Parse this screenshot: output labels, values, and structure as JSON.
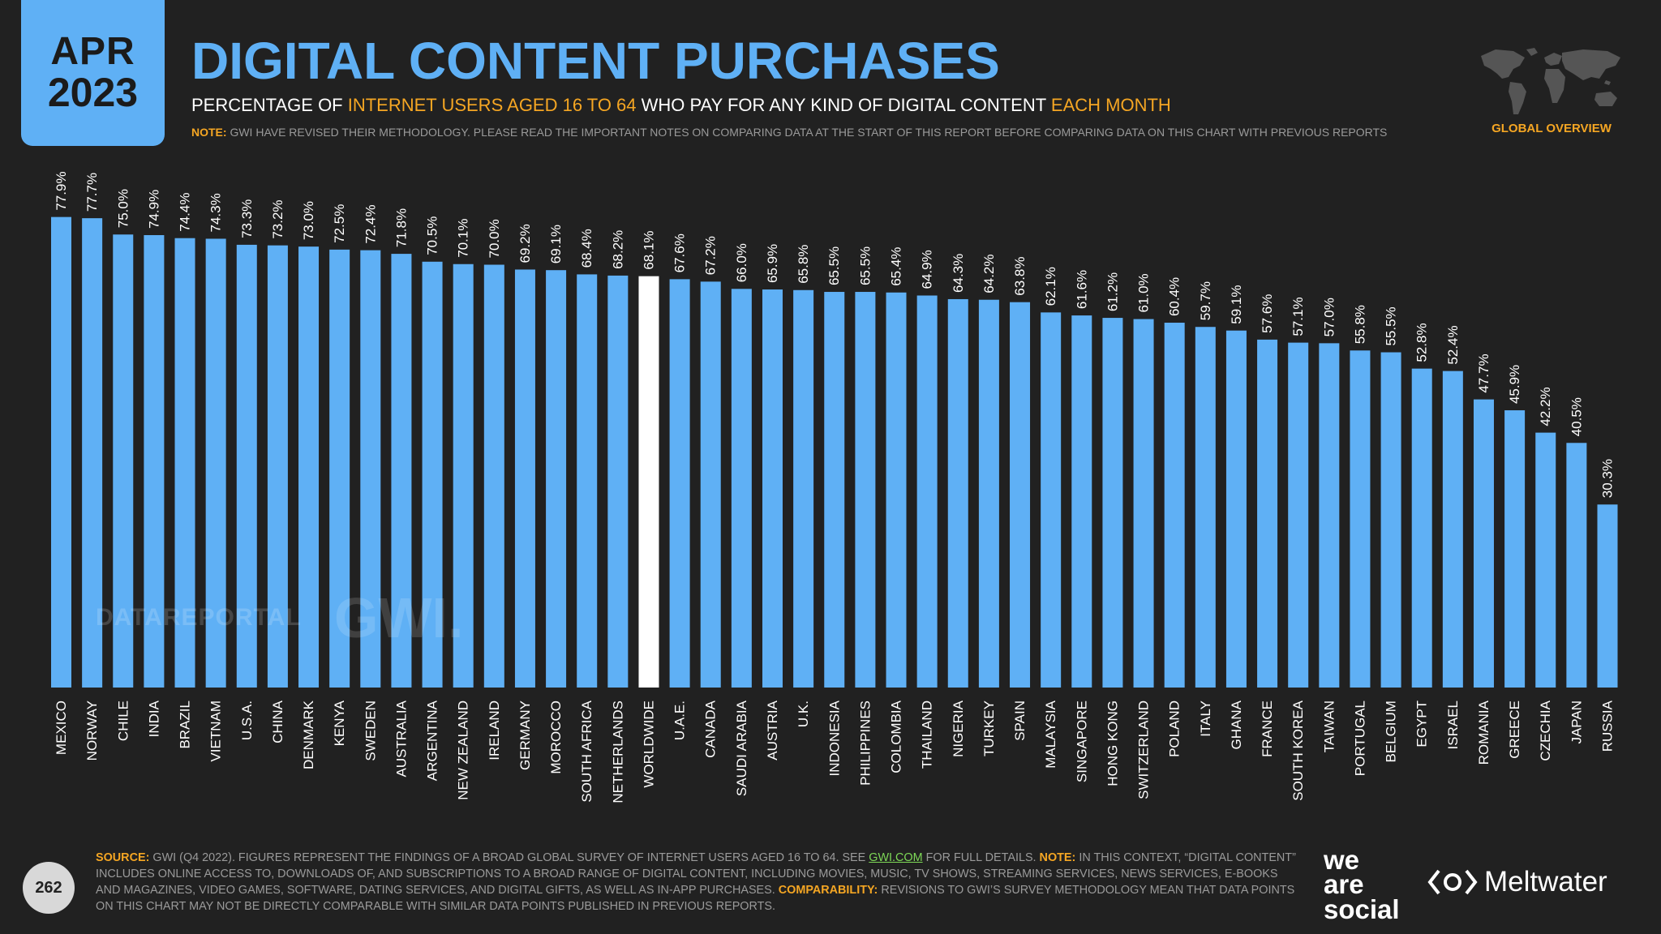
{
  "header": {
    "month": "APR",
    "year": "2023",
    "title": "DIGITAL CONTENT PURCHASES",
    "subtitle_a": "PERCENTAGE OF ",
    "subtitle_b": "INTERNET USERS AGED 16 TO 64",
    "subtitle_c": " WHO PAY FOR ANY KIND OF DIGITAL CONTENT ",
    "subtitle_d": "EACH MONTH",
    "note_label": "NOTE:",
    "note_text": " GWI HAVE REVISED THEIR METHODOLOGY. PLEASE READ THE IMPORTANT NOTES ON COMPARING DATA AT THE START OF THIS REPORT BEFORE COMPARING DATA ON THIS CHART WITH PREVIOUS REPORTS",
    "overview": "GLOBAL OVERVIEW"
  },
  "colors": {
    "bar": "#5fb0f5",
    "highlight": "#ffffff",
    "accent": "#f5a623",
    "background": "#212121"
  },
  "watermarks": {
    "datareportal": "DATAREPORTAL",
    "gwi": "GWI."
  },
  "chart_data": {
    "type": "bar",
    "orientation": "vertical",
    "title": "DIGITAL CONTENT PURCHASES",
    "xlabel": "",
    "ylabel": "",
    "ylim": [
      0,
      100
    ],
    "unit": "%",
    "grid": false,
    "highlight": "WORLDWIDE",
    "categories": [
      "MEXICO",
      "NORWAY",
      "CHILE",
      "INDIA",
      "BRAZIL",
      "VIETNAM",
      "U.S.A.",
      "CHINA",
      "DENMARK",
      "KENYA",
      "SWEDEN",
      "AUSTRALIA",
      "ARGENTINA",
      "NEW ZEALAND",
      "IRELAND",
      "GERMANY",
      "MOROCCO",
      "SOUTH AFRICA",
      "NETHERLANDS",
      "WORLDWIDE",
      "U.A.E.",
      "CANADA",
      "SAUDI ARABIA",
      "AUSTRIA",
      "U.K.",
      "INDONESIA",
      "PHILIPPINES",
      "COLOMBIA",
      "THAILAND",
      "NIGERIA",
      "TURKEY",
      "SPAIN",
      "MALAYSIA",
      "SINGAPORE",
      "HONG KONG",
      "SWITZERLAND",
      "POLAND",
      "ITALY",
      "GHANA",
      "FRANCE",
      "SOUTH KOREA",
      "TAIWAN",
      "PORTUGAL",
      "BELGIUM",
      "EGYPT",
      "ISRAEL",
      "ROMANIA",
      "GREECE",
      "CZECHIA",
      "JAPAN",
      "RUSSIA"
    ],
    "values": [
      77.9,
      77.7,
      75.0,
      74.9,
      74.4,
      74.3,
      73.3,
      73.2,
      73.0,
      72.5,
      72.4,
      71.8,
      70.5,
      70.1,
      70.0,
      69.2,
      69.1,
      68.4,
      68.2,
      68.1,
      67.6,
      67.2,
      66.0,
      65.9,
      65.8,
      65.5,
      65.5,
      65.4,
      64.9,
      64.3,
      64.2,
      63.8,
      62.1,
      61.6,
      61.2,
      61.0,
      60.4,
      59.7,
      59.1,
      57.6,
      57.1,
      57.0,
      55.8,
      55.5,
      52.8,
      52.4,
      47.7,
      45.9,
      42.2,
      40.5,
      30.3
    ]
  },
  "footer": {
    "page": "262",
    "source_label": "SOURCE:",
    "source_text": " GWI (Q4 2022). FIGURES REPRESENT THE FINDINGS OF A BROAD GLOBAL SURVEY OF INTERNET USERS AGED 16 TO 64. SEE ",
    "source_link": "GWI.COM",
    "source_text2": " FOR FULL DETAILS. ",
    "note_label": "NOTE:",
    "note_text": " IN THIS CONTEXT, “DIGITAL CONTENT” INCLUDES ONLINE ACCESS TO, DOWNLOADS OF, AND SUBSCRIPTIONS TO A BROAD RANGE OF DIGITAL CONTENT, INCLUDING MOVIES, MUSIC, TV SHOWS, STREAMING SERVICES, NEWS SERVICES, E-BOOKS AND MAGAZINES, VIDEO GAMES, SOFTWARE, DATING SERVICES, AND DIGITAL GIFTS, AS WELL AS IN-APP PURCHASES. ",
    "comparability_label": "COMPARABILITY:",
    "comparability_text": " REVISIONS TO GWI’S SURVEY METHODOLOGY MEAN THAT DATA POINTS ON THIS CHART MAY NOT BE DIRECTLY COMPARABLE WITH SIMILAR DATA POINTS PUBLISHED IN PREVIOUS REPORTS."
  },
  "logos": {
    "was_line1": "we",
    "was_line2": "are",
    "was_line3": "social",
    "meltwater": "Meltwater"
  }
}
